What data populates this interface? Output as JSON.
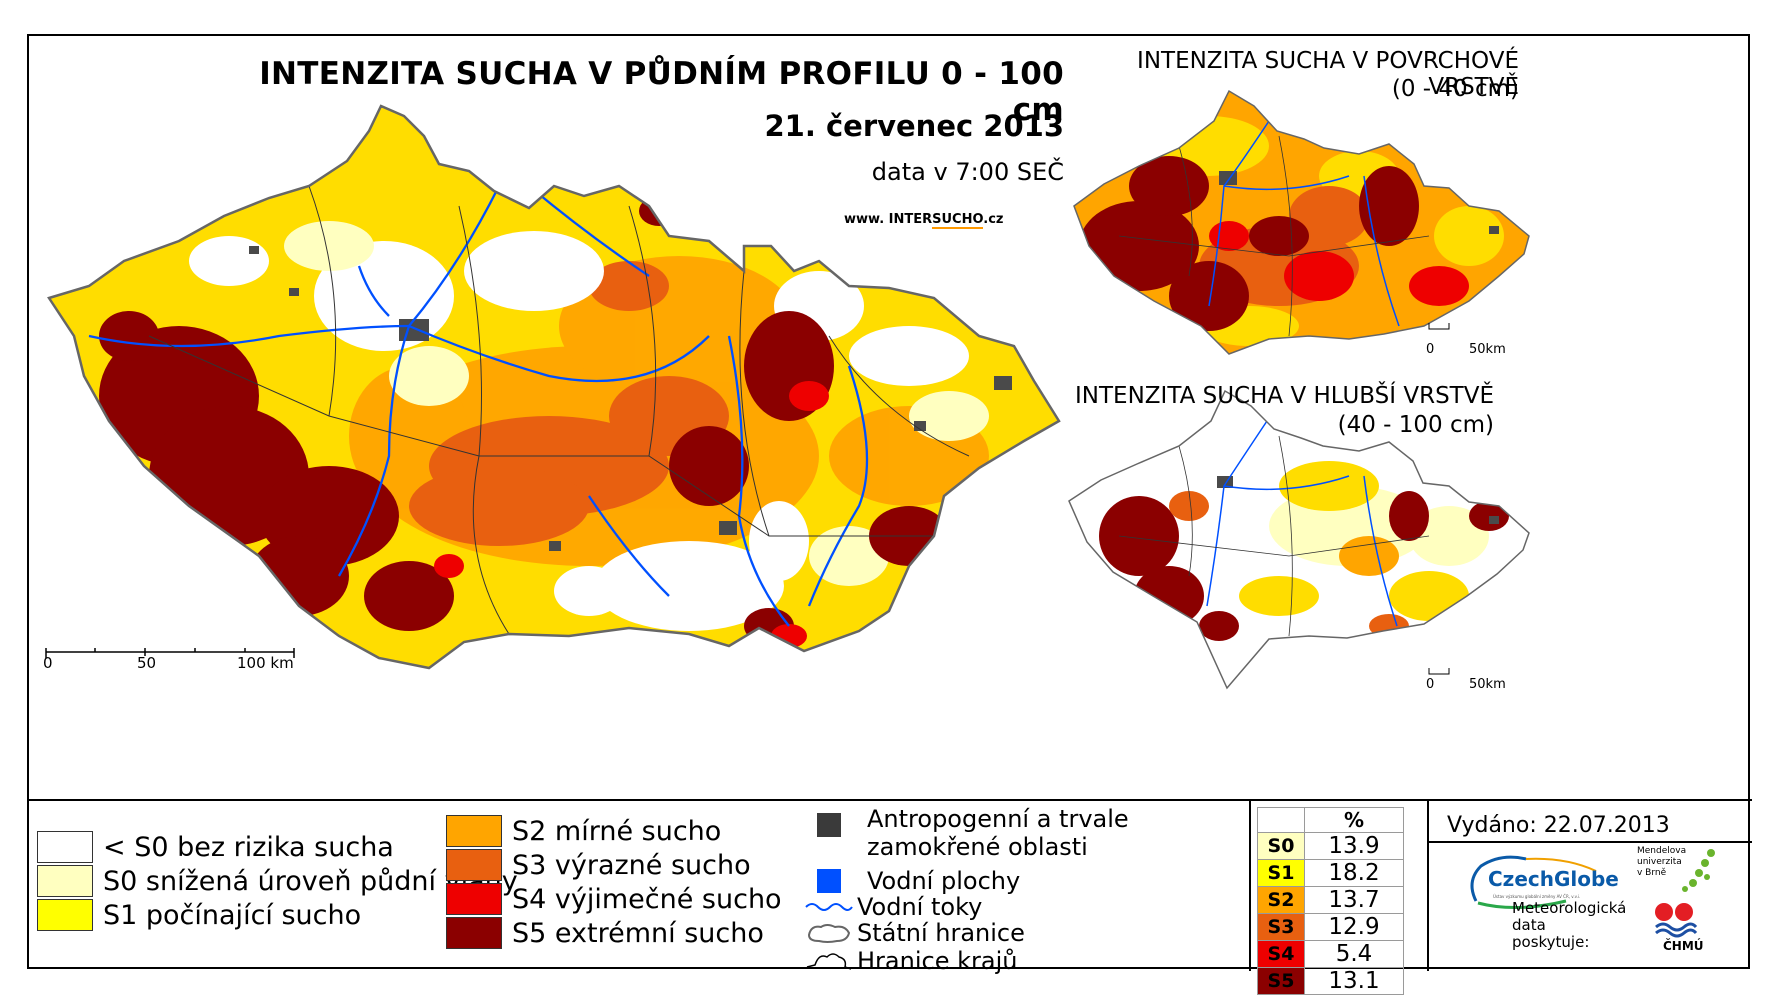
{
  "main_title": "INTENZITA SUCHA V PŮDNÍM PROFILU 0 - 100 cm",
  "date": "21. červenec 2013",
  "data_time": "data v 7:00 SEČ",
  "website": {
    "prefix": "www. INTER",
    "highlight": "SUCHO",
    "suffix": ".cz"
  },
  "main_scalebar": {
    "labels": [
      "0",
      "50",
      "100 km"
    ]
  },
  "inset_top": {
    "title_line1": "INTENZITA SUCHA V POVRCHOVÉ VRSTVĚ",
    "title_line2": "(0 - 40 cm)",
    "scale": [
      "0",
      "50km"
    ]
  },
  "inset_bottom": {
    "title_line1": "INTENZITA SUCHA V HLUBŠÍ VRSTVĚ",
    "title_line2": "(40 - 100 cm)",
    "scale": [
      "0",
      "50km"
    ]
  },
  "legend": {
    "classes": [
      {
        "label": "< S0 bez rizika sucha",
        "color": "#ffffff"
      },
      {
        "label": "S0 snížená úroveň půdní vláhy",
        "color": "#ffffc0"
      },
      {
        "label": "S1 počínající sucho",
        "color": "#ffff00"
      },
      {
        "label": "S2 mírné sucho",
        "color": "#ffa500"
      },
      {
        "label": "S3 výrazné sucho",
        "color": "#e86010"
      },
      {
        "label": "S4 výjimečné sucho",
        "color": "#ee0000"
      },
      {
        "label": "S5 extrémní sucho",
        "color": "#8b0000"
      }
    ],
    "other": [
      {
        "label_line1": "Antropogenní a trvale",
        "label_line2": "zamokřené oblasti",
        "icon": "square-dark-gray",
        "color": "#3a3a3a"
      },
      {
        "label": "Vodní plochy",
        "icon": "square-blue",
        "color": "#0050ff"
      },
      {
        "label": "Vodní toky",
        "icon": "wavy-line-blue",
        "color": "#0050ff"
      },
      {
        "label": "Státní hranice",
        "icon": "gray-outline-shape"
      },
      {
        "label": "Hranice krajů",
        "icon": "black-outline-shape"
      }
    ]
  },
  "percent_table": {
    "header": "%",
    "rows": [
      {
        "code": "S0",
        "value": "13.9",
        "color": "#ffffc0"
      },
      {
        "code": "S1",
        "value": "18.2",
        "color": "#ffff00"
      },
      {
        "code": "S2",
        "value": "13.7",
        "color": "#ffa500"
      },
      {
        "code": "S3",
        "value": "12.9",
        "color": "#e86010"
      },
      {
        "code": "S4",
        "value": "5.4",
        "color": "#ee0000"
      },
      {
        "code": "S5",
        "value": "13.1",
        "color": "#8b0000"
      }
    ]
  },
  "issued": "Vydáno: 22.07.2013",
  "logos": {
    "czechglobe": "CzechGlobe",
    "czechglobe_sub": "Ústav výzkumu globální změny AV ČR, v.v.i.",
    "mendel_line1": "Mendelova",
    "mendel_line2": "univerzita",
    "mendel_line3": "v Brně",
    "meteo_line1": "Meteorologická",
    "meteo_line2": "data",
    "meteo_line3": "poskytuje:",
    "chmu": "ČHMÚ"
  }
}
